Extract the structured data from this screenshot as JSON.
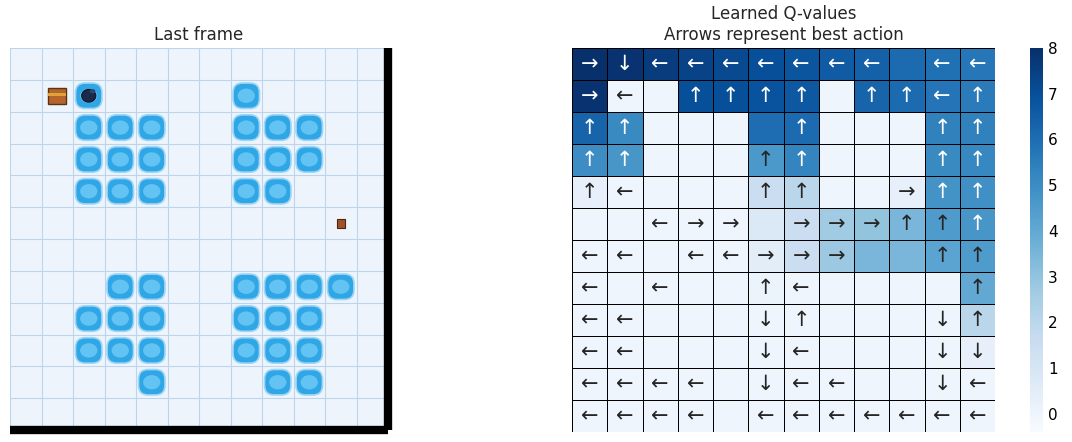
{
  "chart_data": [
    {
      "type": "image",
      "title": "Last frame",
      "rows": 12,
      "cols": 12,
      "holes": [
        [
          1,
          7
        ],
        [
          2,
          2
        ],
        [
          2,
          3
        ],
        [
          2,
          4
        ],
        [
          2,
          7
        ],
        [
          2,
          8
        ],
        [
          2,
          9
        ],
        [
          3,
          2
        ],
        [
          3,
          3
        ],
        [
          3,
          4
        ],
        [
          3,
          7
        ],
        [
          3,
          8
        ],
        [
          3,
          9
        ],
        [
          4,
          2
        ],
        [
          4,
          3
        ],
        [
          4,
          4
        ],
        [
          4,
          7
        ],
        [
          4,
          8
        ],
        [
          7,
          3
        ],
        [
          7,
          4
        ],
        [
          7,
          7
        ],
        [
          7,
          8
        ],
        [
          7,
          9
        ],
        [
          7,
          10
        ],
        [
          8,
          2
        ],
        [
          8,
          3
        ],
        [
          8,
          4
        ],
        [
          8,
          7
        ],
        [
          8,
          8
        ],
        [
          8,
          9
        ],
        [
          9,
          2
        ],
        [
          9,
          3
        ],
        [
          9,
          4
        ],
        [
          9,
          7
        ],
        [
          9,
          8
        ],
        [
          9,
          9
        ],
        [
          10,
          4
        ],
        [
          10,
          8
        ],
        [
          10,
          9
        ],
        [
          1,
          2
        ]
      ],
      "goal": [
        1,
        1
      ],
      "agent": [
        1,
        2
      ],
      "start": [
        5,
        10
      ]
    },
    {
      "type": "heatmap",
      "title": "Learned Q-values\nArrows represent best action",
      "tick_labels": false,
      "values": [
        [
          8.0,
          7.9,
          7.6,
          7.4,
          7.2,
          7.0,
          6.8,
          6.6,
          6.4,
          6.1,
          5.9,
          5.7
        ],
        [
          7.9,
          0.0,
          0.0,
          7.0,
          7.0,
          6.9,
          6.7,
          0.0,
          6.3,
          6.1,
          5.8,
          5.6
        ],
        [
          6.3,
          5.1,
          0.0,
          0.0,
          0.0,
          6.0,
          6.1,
          0.0,
          0.0,
          0.0,
          5.4,
          5.4
        ],
        [
          5.0,
          4.7,
          0.0,
          0.0,
          0.0,
          4.6,
          5.3,
          0.0,
          0.0,
          0.0,
          5.1,
          5.2
        ],
        [
          0.3,
          0.0,
          0.0,
          0.0,
          0.0,
          1.5,
          2.0,
          0.0,
          0.0,
          0.3,
          4.8,
          4.9
        ],
        [
          0.0,
          0.0,
          0.0,
          0.0,
          0.0,
          0.8,
          1.5,
          2.7,
          3.0,
          3.5,
          4.5,
          4.7
        ],
        [
          0.0,
          0.0,
          0.0,
          0.0,
          0.0,
          0.5,
          1.5,
          2.8,
          3.5,
          3.5,
          4.2,
          4.5
        ],
        [
          0.0,
          0.0,
          0.0,
          0.0,
          0.0,
          0.1,
          0.0,
          0.0,
          0.0,
          0.0,
          0.0,
          4.0
        ],
        [
          0.0,
          0.0,
          0.0,
          0.0,
          0.0,
          0.0,
          0.0,
          0.0,
          0.0,
          0.0,
          0.0,
          2.0
        ],
        [
          0.0,
          0.0,
          0.0,
          0.0,
          0.0,
          0.0,
          0.0,
          0.0,
          0.0,
          0.0,
          0.0,
          0.3
        ],
        [
          0.0,
          0.0,
          0.0,
          0.0,
          0.0,
          0.0,
          0.0,
          0.0,
          0.0,
          0.0,
          0.0,
          0.0
        ],
        [
          0.0,
          0.0,
          0.0,
          0.0,
          0.0,
          0.0,
          0.0,
          0.0,
          0.0,
          0.0,
          0.0,
          0.0
        ]
      ],
      "arrows": [
        [
          "→",
          "↓",
          "←",
          "←",
          "←",
          "←",
          "←",
          "←",
          "←",
          null,
          "←",
          "←"
        ],
        [
          "→",
          "←",
          null,
          "↑",
          "↑",
          "↑",
          "↑",
          null,
          "↑",
          "↑",
          "←",
          "↑"
        ],
        [
          "↑",
          "↑",
          null,
          null,
          null,
          null,
          "↑",
          null,
          null,
          null,
          "↑",
          "↑"
        ],
        [
          "↑",
          "↑",
          null,
          null,
          null,
          "↑",
          "↑",
          null,
          null,
          null,
          "↑",
          "↑"
        ],
        [
          "↑",
          "←",
          null,
          null,
          null,
          "↑",
          "↑",
          null,
          null,
          "→",
          "↑",
          "↑"
        ],
        [
          null,
          null,
          "←",
          "→",
          "→",
          null,
          "→",
          "→",
          "→",
          "↑",
          "↑",
          "↑"
        ],
        [
          "←",
          "←",
          null,
          "←",
          "←",
          "→",
          "→",
          "→",
          null,
          null,
          "↑",
          "↑"
        ],
        [
          "←",
          null,
          "←",
          null,
          null,
          "↑",
          "←",
          null,
          null,
          null,
          null,
          "↑"
        ],
        [
          "←",
          "←",
          null,
          null,
          null,
          "↓",
          "↑",
          null,
          null,
          null,
          "↓",
          "↑"
        ],
        [
          "←",
          "←",
          null,
          null,
          null,
          "↓",
          "←",
          null,
          null,
          null,
          "↓",
          "↓"
        ],
        [
          "←",
          "←",
          "←",
          "←",
          null,
          "↓",
          "←",
          "←",
          null,
          null,
          "↓",
          "←"
        ],
        [
          "←",
          "←",
          "←",
          "←",
          null,
          "←",
          "←",
          "←",
          "←",
          "←",
          "←",
          "←"
        ]
      ],
      "colorbar": {
        "range": [
          -0.4,
          8
        ],
        "ticks": [
          0,
          1,
          2,
          3,
          4,
          5,
          6,
          7,
          8
        ]
      }
    }
  ]
}
